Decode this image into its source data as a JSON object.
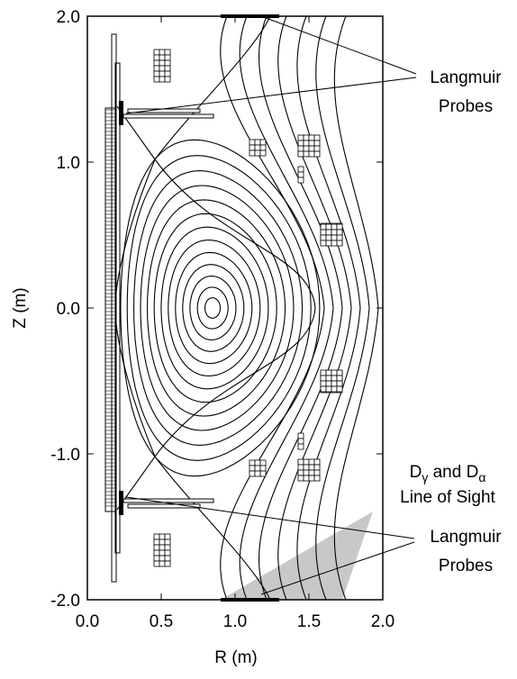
{
  "chart_data": {
    "type": "equilibrium",
    "xlabel": "R (m)",
    "ylabel": "Z (m)",
    "xlim": [
      0,
      2
    ],
    "ylim": [
      -2,
      2
    ],
    "xticks": [
      {
        "value": 0,
        "label": "0.0"
      },
      0.5,
      {
        "value": 1,
        "label": "1.0"
      },
      1.5,
      {
        "value": 2,
        "label": "2.0"
      }
    ],
    "yticks": [
      {
        "value": -2,
        "label": "-2.0"
      },
      {
        "value": -1,
        "label": "-1.0"
      },
      {
        "value": 0,
        "label": "0.0"
      },
      {
        "value": 1,
        "label": "1.0"
      },
      {
        "value": 2,
        "label": "2.0"
      }
    ],
    "annotations": [
      {
        "lines": [
          "Langmuir",
          "Probes"
        ]
      },
      {
        "lines": [
          "Langmuir",
          "Probes"
        ]
      },
      {
        "parts": [
          "D",
          "γ",
          " and D",
          "α"
        ],
        "lines": [
          "Line of Sight"
        ]
      }
    ]
  }
}
